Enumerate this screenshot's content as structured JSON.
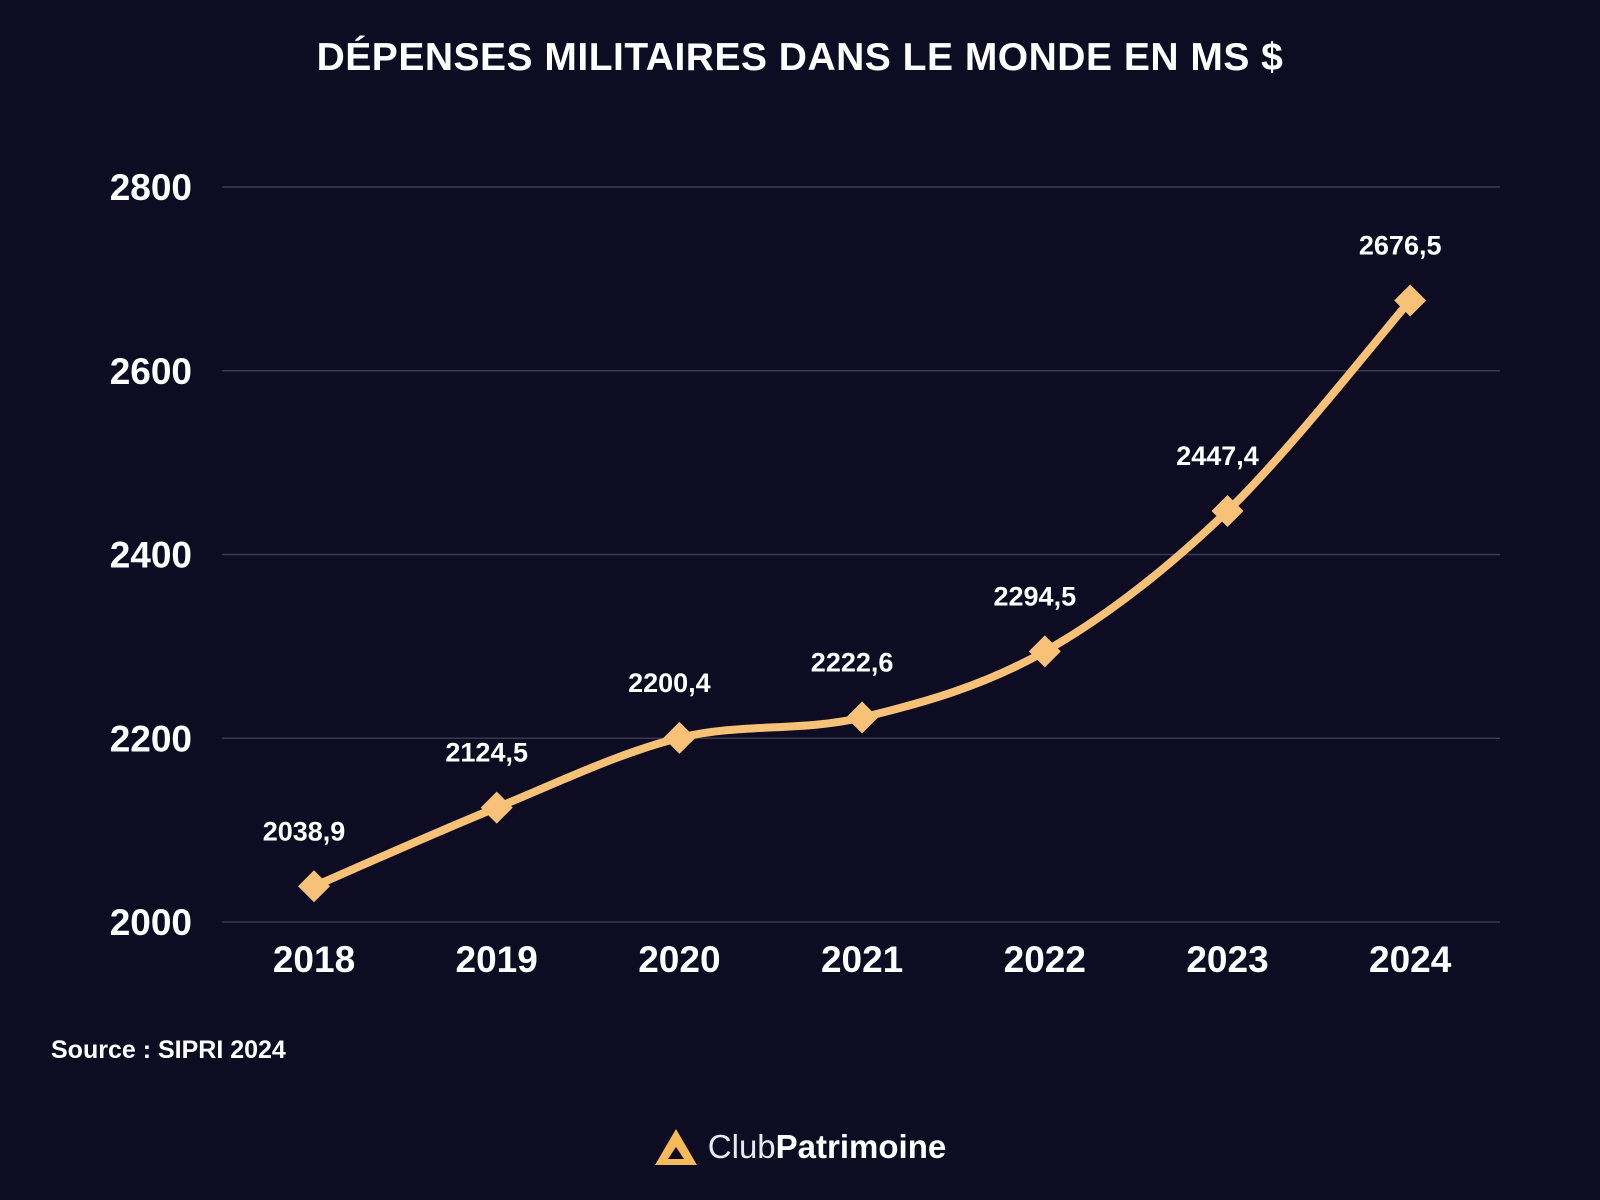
{
  "title": "DÉPENSES MILITAIRES DANS LE MONDE EN MS $",
  "source": "Source : SIPRI 2024",
  "brand": {
    "light": "Club",
    "bold": "Patrimoine",
    "logo_icon": "triangle-logo-icon",
    "logo_color": "#f5b95a"
  },
  "colors": {
    "background": "#0d0c22",
    "line": "#f7c277",
    "grid": "#3a3950",
    "text": "#ffffff"
  },
  "chart_data": {
    "type": "line",
    "title": "DÉPENSES MILITAIRES DANS LE MONDE EN MS $",
    "categories": [
      "2018",
      "2019",
      "2020",
      "2021",
      "2022",
      "2023",
      "2024"
    ],
    "values": [
      2038.9,
      2124.5,
      2200.4,
      2222.6,
      2294.5,
      2447.4,
      2676.5
    ],
    "value_labels": [
      "2038,9",
      "2124,5",
      "2200,4",
      "2222,6",
      "2294,5",
      "2447,4",
      "2676,5"
    ],
    "y_ticks": [
      2000,
      2200,
      2400,
      2600,
      2800
    ],
    "ylim": [
      2000,
      2800
    ],
    "grid": true,
    "marker": "diamond",
    "smooth": true,
    "xlabel": "",
    "ylabel": ""
  }
}
